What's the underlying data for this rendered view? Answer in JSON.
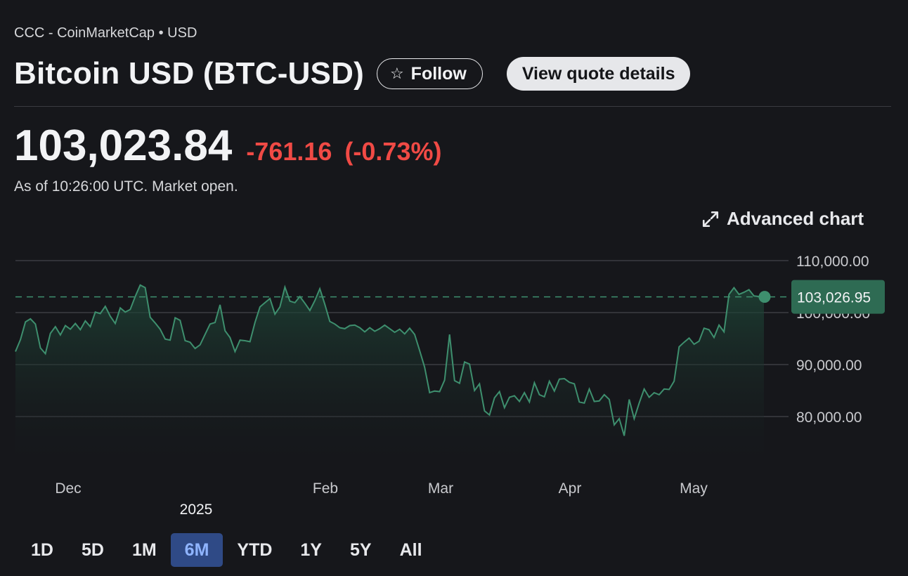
{
  "header": {
    "source": "CCC - CoinMarketCap • USD",
    "title": "Bitcoin USD (BTC-USD)",
    "follow_label": "Follow",
    "quote_details_label": "View quote details"
  },
  "quote": {
    "price": "103,023.84",
    "change": "-761.16",
    "change_pct": "(-0.73%)",
    "as_of": "As of 10:26:00 UTC. Market open."
  },
  "advanced_chart_label": "Advanced chart",
  "colors": {
    "background": "#16171b",
    "negative": "#f04a45",
    "line": "#3e8f6e",
    "current_badge": "#2e6b53",
    "active_range": "#2f4a86"
  },
  "icons": [
    "star-icon",
    "expand-icon"
  ],
  "chart_data": {
    "type": "area",
    "ylim": [
      75000,
      112000
    ],
    "y_ticks": [
      "110,000.00",
      "100,000.00",
      "90,000.00",
      "80,000.00"
    ],
    "y_tick_values": [
      110000,
      100000,
      90000,
      80000
    ],
    "x_labels": [
      "Dec",
      "Feb",
      "Mar",
      "Apr",
      "May"
    ],
    "year_label": "2025",
    "current_value": 103026.95,
    "current_label": "103,026.95",
    "values": [
      92500,
      94800,
      98200,
      98800,
      97800,
      93200,
      92100,
      96000,
      97300,
      95700,
      97500,
      96800,
      97900,
      96700,
      98400,
      97300,
      100100,
      99800,
      101200,
      99300,
      97900,
      100900,
      100100,
      100600,
      103100,
      105300,
      104800,
      99100,
      98000,
      96800,
      94900,
      94700,
      99000,
      98500,
      94600,
      94300,
      93100,
      93800,
      95800,
      97800,
      98100,
      101500,
      96500,
      95200,
      92500,
      94700,
      94600,
      94400,
      98100,
      101100,
      101900,
      102700,
      99700,
      101100,
      104900,
      102200,
      101900,
      103100,
      101800,
      100400,
      102300,
      104600,
      101600,
      98300,
      97800,
      97100,
      96900,
      97500,
      97600,
      97100,
      96300,
      97100,
      96400,
      96900,
      97600,
      96900,
      96200,
      96800,
      95900,
      97000,
      95800,
      92700,
      89500,
      84600,
      84900,
      84800,
      87000,
      95800,
      86900,
      86400,
      90500,
      90100,
      85000,
      86300,
      81100,
      80300,
      83600,
      84800,
      81700,
      83700,
      84000,
      82900,
      84600,
      82800,
      86500,
      84200,
      83800,
      86800,
      84900,
      87200,
      87300,
      86600,
      86300,
      82800,
      82600,
      85300,
      82900,
      83000,
      84200,
      83300,
      78400,
      79600,
      76300,
      83300,
      79600,
      82600,
      85300,
      83700,
      84600,
      84200,
      85300,
      85200,
      86800,
      93400,
      94300,
      95100,
      93900,
      94500,
      97000,
      96700,
      95200,
      97600,
      96300,
      103500,
      104800,
      103500,
      103900,
      104400,
      103200,
      103100,
      103026.95
    ]
  },
  "timeframes": {
    "items": [
      {
        "label": "1D"
      },
      {
        "label": "5D"
      },
      {
        "label": "1M"
      },
      {
        "label": "6M"
      },
      {
        "label": "YTD"
      },
      {
        "label": "1Y"
      },
      {
        "label": "5Y"
      },
      {
        "label": "All"
      }
    ],
    "active": "6M"
  }
}
